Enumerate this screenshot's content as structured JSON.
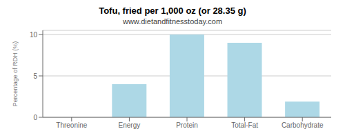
{
  "chart_data": {
    "type": "bar",
    "title": "Tofu, fried per 1,000 oz (or 28.35 g)",
    "subtitle": "www.dietandfitnesstoday.com",
    "categories": [
      "Threonine",
      "Energy",
      "Protein",
      "Total-Fat",
      "Carbohydrate"
    ],
    "values": [
      0.0,
      4.0,
      10.0,
      9.0,
      1.9
    ],
    "color": "#ADD8E6",
    "ylabel": "Percentage of RDH (%)",
    "ylim": [
      0,
      10.5
    ],
    "yticks": [
      0,
      5,
      10
    ],
    "grid": true
  }
}
